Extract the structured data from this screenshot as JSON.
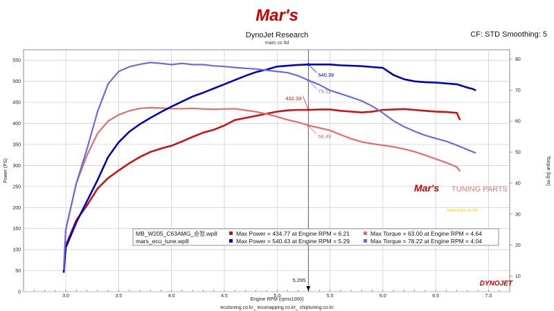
{
  "header": {
    "logo_text": "Mar's",
    "title": "DynoJet Research",
    "subtitle": "mars co ltd",
    "cf_text": "CF: STD Smoothing: 5"
  },
  "footer": {
    "text": "ecutuning.co.kr_ ecumapping.co.kr_ chiptuning.co.kr",
    "brand": "DYNOJET"
  },
  "watermark": {
    "logo": "Mar's",
    "text": "TUNING PARTS",
    "url": "www.mars-co.ltd"
  },
  "colors": {
    "run1_power": "#d01010",
    "run1_torque": "#e86a6a",
    "run2_power": "#0000c0",
    "run2_torque": "#6a6ae0",
    "grid": "#c8c8c8",
    "plot_bg": "#ffffff",
    "brand_red": "#cc0000"
  },
  "chart_data": {
    "type": "line",
    "xlabel": "Engine RPM (rpmx1000)",
    "ylabel": "Power (PS)",
    "y2label": "Torque (kg-m)",
    "xlim": [
      2.6,
      7.2
    ],
    "ylim": [
      0,
      575
    ],
    "y2lim": [
      5,
      83
    ],
    "x_ticks": [
      "3.0",
      "3.5",
      "4.0",
      "4.5",
      "5.0",
      "5.5",
      "6.0",
      "6.5",
      "7.0"
    ],
    "y_ticks": [
      "0",
      "50",
      "100",
      "150",
      "200",
      "250",
      "300",
      "350",
      "400",
      "450",
      "500",
      "550"
    ],
    "y2_ticks": [
      "10",
      "20",
      "30",
      "40",
      "50",
      "60",
      "70",
      "80"
    ],
    "grid": true,
    "cursor": {
      "x": 5.295,
      "label": "5.295"
    },
    "annotations": [
      {
        "text": "540.39",
        "series": "run2_power",
        "x": 5.295,
        "y": 540.39
      },
      {
        "text": "432.39",
        "series": "run1_power",
        "x": 5.295,
        "y": 432.39
      },
      {
        "text": "73.11",
        "series": "run2_torque",
        "x": 5.295,
        "y": 73.11
      },
      {
        "text": "58.49",
        "series": "run1_torque",
        "x": 5.295,
        "y": 58.49
      }
    ],
    "legend": {
      "placement": "bottom-center",
      "rows": [
        {
          "file": "MB_W205_C63AMG_순정.wp8",
          "power_text": "Max Power = 434.77 at Engine RPM = 6.21",
          "torque_text": "Max Torque = 63.00 at Engine RPM = 4.64"
        },
        {
          "file": "mars_ecu_tune.wp8",
          "power_text": "Max Power = 540.43 at Engine RPM = 5.29",
          "torque_text": "Max Torque = 78.22 at Engine RPM = 4.04"
        }
      ]
    },
    "series": [
      {
        "key": "run1_power",
        "axis": "left",
        "x": [
          2.98,
          3.0,
          3.1,
          3.2,
          3.3,
          3.4,
          3.5,
          3.6,
          3.7,
          3.8,
          3.9,
          4.0,
          4.1,
          4.2,
          4.3,
          4.4,
          4.5,
          4.6,
          4.7,
          4.8,
          4.9,
          5.0,
          5.1,
          5.2,
          5.3,
          5.4,
          5.5,
          5.6,
          5.7,
          5.8,
          5.9,
          6.0,
          6.1,
          6.2,
          6.3,
          6.4,
          6.5,
          6.6,
          6.7,
          6.73
        ],
        "y": [
          50,
          110,
          170,
          205,
          245,
          270,
          288,
          305,
          320,
          332,
          340,
          347,
          357,
          368,
          378,
          385,
          395,
          408,
          413,
          418,
          423,
          428,
          431,
          432,
          432,
          433,
          433,
          430,
          428,
          426,
          428,
          432,
          433,
          434,
          432,
          430,
          428,
          427,
          425,
          408
        ]
      },
      {
        "key": "run1_torque",
        "axis": "right",
        "x": [
          2.98,
          3.0,
          3.1,
          3.2,
          3.3,
          3.4,
          3.5,
          3.6,
          3.7,
          3.8,
          3.9,
          4.0,
          4.1,
          4.2,
          4.3,
          4.4,
          4.5,
          4.6,
          4.7,
          4.8,
          4.9,
          5.0,
          5.1,
          5.2,
          5.3,
          5.4,
          5.5,
          5.6,
          5.7,
          5.8,
          5.9,
          6.0,
          6.1,
          6.2,
          6.3,
          6.4,
          6.5,
          6.6,
          6.7,
          6.73
        ],
        "y": [
          12,
          25,
          40,
          49,
          56,
          60,
          62,
          63.3,
          64.1,
          64.3,
          64.2,
          64.0,
          64.0,
          64.1,
          63.9,
          63.8,
          63.9,
          64.0,
          63.5,
          63.0,
          62.3,
          61.4,
          60.4,
          59.6,
          58.6,
          57.8,
          57.0,
          55.6,
          54.3,
          53.3,
          52.7,
          52.2,
          51.7,
          51.0,
          50.1,
          49.0,
          47.8,
          46.6,
          45.2,
          43.8
        ]
      },
      {
        "key": "run2_power",
        "axis": "left",
        "x": [
          2.98,
          3.0,
          3.1,
          3.2,
          3.3,
          3.4,
          3.5,
          3.6,
          3.7,
          3.8,
          3.9,
          4.0,
          4.1,
          4.2,
          4.3,
          4.4,
          4.5,
          4.6,
          4.7,
          4.8,
          4.9,
          5.0,
          5.1,
          5.2,
          5.3,
          5.4,
          5.5,
          5.6,
          5.7,
          5.8,
          5.9,
          6.0,
          6.1,
          6.2,
          6.3,
          6.4,
          6.5,
          6.6,
          6.7,
          6.8,
          6.85,
          6.88
        ],
        "y": [
          45,
          105,
          165,
          215,
          265,
          320,
          355,
          380,
          398,
          413,
          427,
          440,
          452,
          464,
          473,
          483,
          493,
          503,
          513,
          522,
          528,
          535,
          537,
          539,
          540,
          540,
          540,
          538,
          537,
          536,
          534,
          532,
          515,
          505,
          500,
          498,
          497,
          495,
          493,
          485,
          482,
          478
        ]
      },
      {
        "key": "run2_torque",
        "axis": "right",
        "x": [
          2.98,
          3.0,
          3.1,
          3.2,
          3.3,
          3.4,
          3.5,
          3.6,
          3.7,
          3.8,
          3.9,
          4.0,
          4.1,
          4.2,
          4.3,
          4.4,
          4.5,
          4.6,
          4.7,
          4.8,
          4.9,
          5.0,
          5.1,
          5.2,
          5.3,
          5.4,
          5.5,
          5.6,
          5.7,
          5.8,
          5.9,
          6.0,
          6.1,
          6.2,
          6.3,
          6.4,
          6.5,
          6.6,
          6.7,
          6.8,
          6.85,
          6.88
        ],
        "y": [
          12,
          25,
          40,
          51,
          63,
          72,
          76,
          77.5,
          78.3,
          78.9,
          78.6,
          78.2,
          78.6,
          78.2,
          78.2,
          77.8,
          77.6,
          77.3,
          77.0,
          76.8,
          76.4,
          76.0,
          75.6,
          74.6,
          73.1,
          71.7,
          69.9,
          68.8,
          67.7,
          66.5,
          64.8,
          62.6,
          60.1,
          58.2,
          56.7,
          55.4,
          54.4,
          53.5,
          52.2,
          50.8,
          50.1,
          49.7
        ]
      }
    ]
  }
}
